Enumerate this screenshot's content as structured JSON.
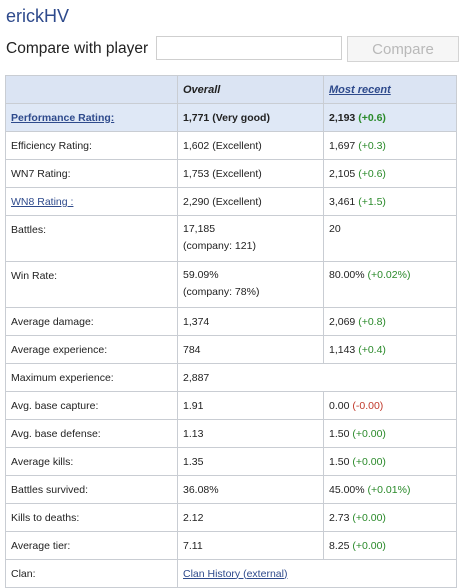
{
  "player": {
    "name": "erickHV"
  },
  "compare": {
    "label": "Compare with player",
    "input_value": "",
    "button_label": "Compare"
  },
  "table": {
    "headers": {
      "overall": "Overall",
      "recent": "Most recent"
    },
    "performance": {
      "label": "Performance Rating:",
      "overall": "1,771 (Very good)",
      "recent": "2,193",
      "recent_delta": "(+0.6)"
    },
    "efficiency": {
      "label": "Efficiency Rating:",
      "overall": "1,602 (Excellent)",
      "recent": "1,697",
      "recent_delta": "(+0.3)"
    },
    "wn7": {
      "label": "WN7 Rating:",
      "overall": "1,753 (Excellent)",
      "recent": "2,105",
      "recent_delta": "(+0.6)"
    },
    "wn8": {
      "label": "WN8 Rating :",
      "overall": "2,290 (Excellent)",
      "recent": "3,461",
      "recent_delta": "(+1.5)"
    },
    "battles": {
      "label": "Battles:",
      "overall": "17,185",
      "overall_sub": "(company: 121)",
      "recent": "20"
    },
    "winrate": {
      "label": "Win Rate:",
      "overall": "59.09%",
      "overall_sub": "(company: 78%)",
      "recent": "80.00%",
      "recent_delta": "(+0.02%)"
    },
    "avg_damage": {
      "label": "Average damage:",
      "overall": "1,374",
      "recent": "2,069",
      "recent_delta": "(+0.8)"
    },
    "avg_exp": {
      "label": "Average experience:",
      "overall": "784",
      "recent": "1,143",
      "recent_delta": "(+0.4)"
    },
    "max_exp": {
      "label": "Maximum experience:",
      "overall": "2,887"
    },
    "base_capture": {
      "label": "Avg. base capture:",
      "overall": "1.91",
      "recent": "0.00",
      "recent_delta": "(-0.00)"
    },
    "base_defense": {
      "label": "Avg. base defense:",
      "overall": "1.13",
      "recent": "1.50",
      "recent_delta": "(+0.00)"
    },
    "avg_kills": {
      "label": "Average kills:",
      "overall": "1.35",
      "recent": "1.50",
      "recent_delta": "(+0.00)"
    },
    "survived": {
      "label": "Battles survived:",
      "overall": "36.08%",
      "recent": "45.00%",
      "recent_delta": "(+0.01%)"
    },
    "kd": {
      "label": "Kills to deaths:",
      "overall": "2.12",
      "recent": "2.73",
      "recent_delta": "(+0.00)"
    },
    "avg_tier": {
      "label": "Average tier:",
      "overall": "7.11",
      "recent": "8.25",
      "recent_delta": "(+0.00)"
    },
    "clan": {
      "label": "Clan:",
      "link": "Clan History (external)"
    }
  },
  "colors": {
    "link": "#2e4a8c",
    "positive": "#2a8a2a",
    "negative": "#c0392b",
    "header_bg": "#dbe4f3"
  }
}
